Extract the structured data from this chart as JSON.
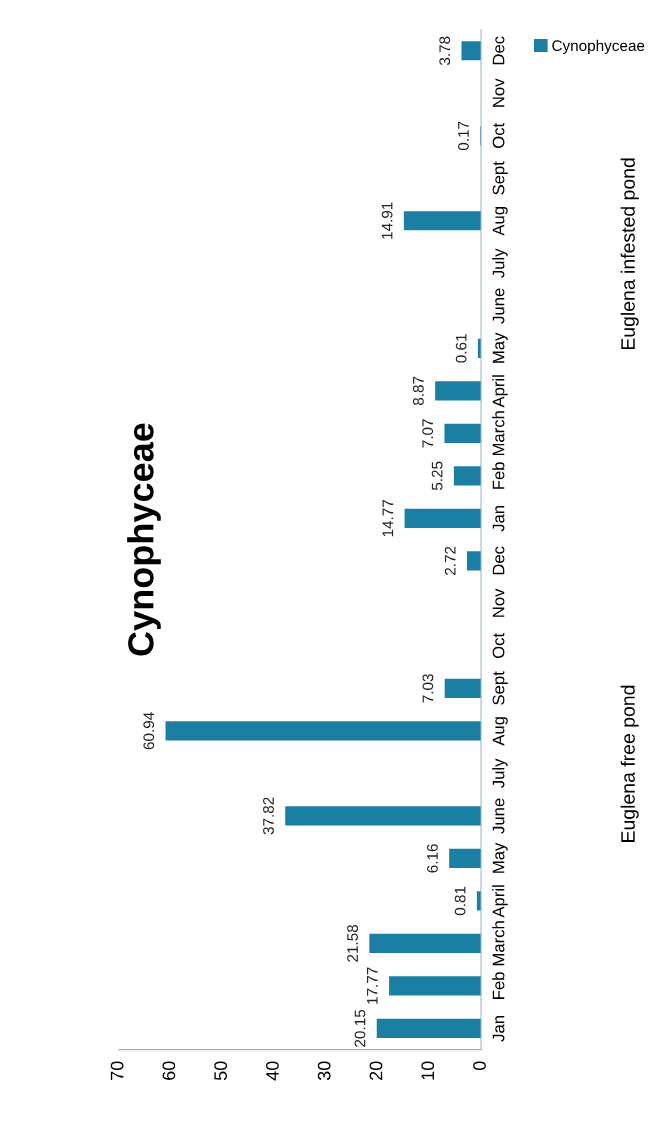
{
  "chart_data": {
    "type": "bar",
    "orientation": "horizontal",
    "title": "Cynophyceae",
    "categories": [
      "Dec",
      "Nov",
      "Oct",
      "Sept",
      "Aug",
      "July",
      "June",
      "May",
      "April",
      "March",
      "Feb",
      "Jan",
      "Dec",
      "Nov",
      "Oct",
      "Sept",
      "Aug",
      "July",
      "June",
      "May",
      "April",
      "March",
      "Feb",
      "Jan"
    ],
    "series": [
      {
        "name": "Cynophyceae",
        "color": "#1b7fa3",
        "values": [
          3.78,
          null,
          0.17,
          null,
          14.91,
          null,
          null,
          0.61,
          8.87,
          7.07,
          5.25,
          14.77,
          2.72,
          null,
          null,
          7.03,
          60.94,
          null,
          37.82,
          6.16,
          0.81,
          21.58,
          17.77,
          20.15
        ]
      }
    ],
    "xlim": [
      70,
      0
    ],
    "xticks": [
      0,
      10,
      20,
      30,
      40,
      50,
      60,
      70
    ],
    "data_labels": true,
    "legend": "top right",
    "grid": false,
    "annotations": [
      "Euglena infested pond",
      "Euglena free pond"
    ]
  }
}
